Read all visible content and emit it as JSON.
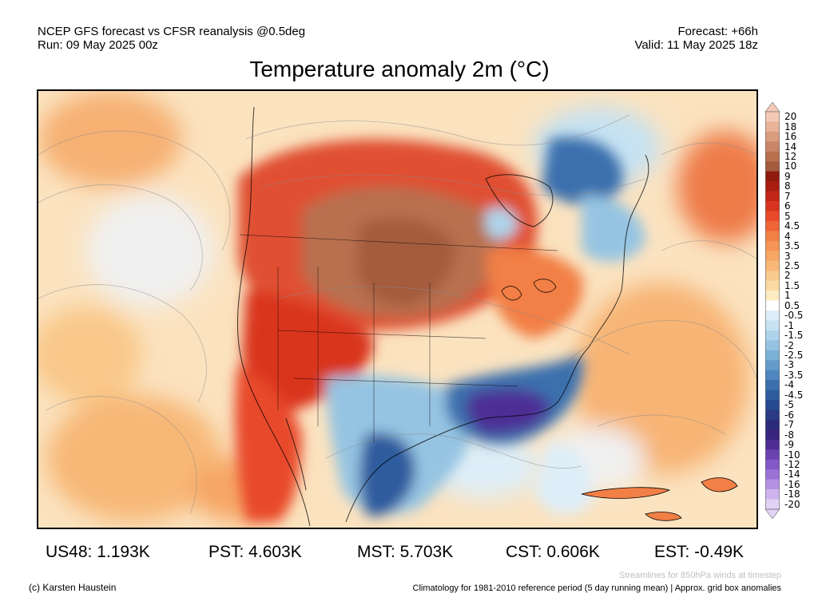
{
  "header": {
    "model_line": "NCEP GFS forecast vs CFSR reanalysis @0.5deg",
    "run_line": "Run: 09 May 2025 00z",
    "forecast_line": "Forecast: +66h",
    "valid_line": "Valid: 11 May 2025 18z"
  },
  "title": "Temperature anomaly 2m (°C)",
  "colorbar": {
    "ticks": [
      "20",
      "18",
      "16",
      "14",
      "12",
      "10",
      "9",
      "8",
      "7",
      "6",
      "5",
      "4.5",
      "4",
      "3.5",
      "3",
      "2.5",
      "2",
      "1.5",
      "1",
      "0.5",
      "-0.5",
      "-1",
      "-1.5",
      "-2",
      "-2.5",
      "-3",
      "-3.5",
      "-4",
      "-4.5",
      "-5",
      "-6",
      "-7",
      "-8",
      "-9",
      "-10",
      "-12",
      "-14",
      "-16",
      "-18",
      "-20"
    ],
    "colors": [
      "#f3c9b6",
      "#e8b398",
      "#d99c7f",
      "#c98567",
      "#b8704f",
      "#a45c3c",
      "#8f1a0d",
      "#a81d10",
      "#c22617",
      "#d9341f",
      "#e84a2a",
      "#ef6537",
      "#f27f45",
      "#f59455",
      "#f6a665",
      "#f8b878",
      "#f9ca8d",
      "#fbdba3",
      "#fdecc2",
      "#ffffff",
      "#deeef8",
      "#c6e2f2",
      "#aed4eb",
      "#95c4e2",
      "#7cb1d8",
      "#639ccb",
      "#4d87bd",
      "#3b70ad",
      "#2e5c9e",
      "#264a91",
      "#2a3a85",
      "#2c2a7a",
      "#38257e",
      "#4e2d95",
      "#6a43b0",
      "#8257c6",
      "#9b72d6",
      "#b592e3",
      "#cdb4ee",
      "#e1d2f5"
    ]
  },
  "stats": [
    {
      "label": "US48: 1.193K"
    },
    {
      "label": "PST: 4.603K"
    },
    {
      "label": "MST: 5.703K"
    },
    {
      "label": "CST: 0.606K"
    },
    {
      "label": "EST: -0.49K"
    }
  ],
  "notes": {
    "streamlines": "Streamlines for 850hPa winds at timestep",
    "credit": "(c) Karsten Haustein",
    "climatology": "Climatology for 1981-2010 reference period (5 day running mean) | Approx. grid box anomalies"
  }
}
